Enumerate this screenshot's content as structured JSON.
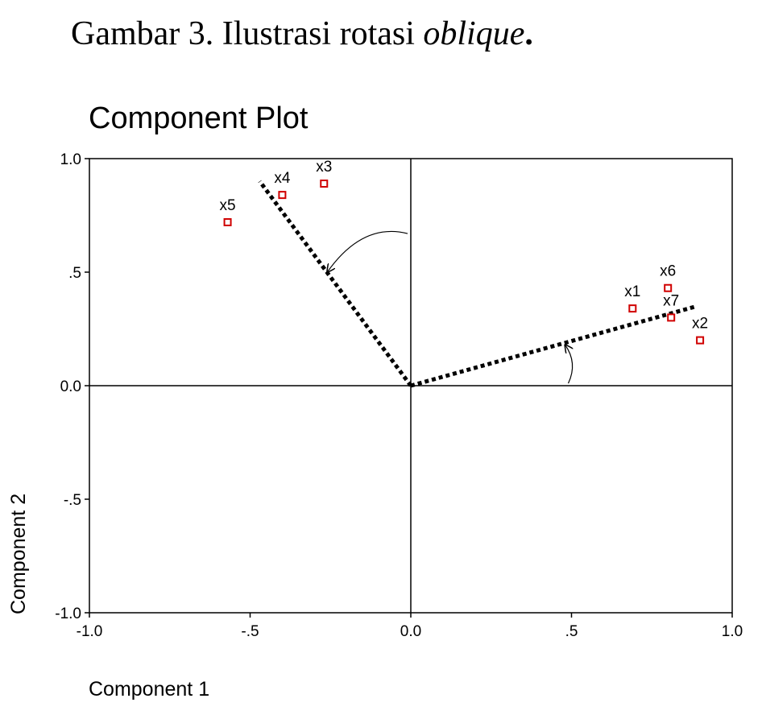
{
  "caption": {
    "prefix": "Gambar 3.  Ilustrasi rotasi ",
    "italic": "oblique",
    "suffix": "."
  },
  "chart_data": {
    "type": "scatter",
    "title": "Component Plot",
    "xlabel": "Component 1",
    "ylabel": "Component 2",
    "xlim": [
      -1.0,
      1.0
    ],
    "ylim": [
      -1.0,
      1.0
    ],
    "x_ticks": [
      {
        "value": -1.0,
        "label": "-1.0"
      },
      {
        "value": -0.5,
        "label": "-.5"
      },
      {
        "value": 0.0,
        "label": "0.0"
      },
      {
        "value": 0.5,
        "label": ".5"
      },
      {
        "value": 1.0,
        "label": "1.0"
      }
    ],
    "y_ticks": [
      {
        "value": 1.0,
        "label": "1.0"
      },
      {
        "value": 0.5,
        "label": ".5"
      },
      {
        "value": 0.0,
        "label": "0.0"
      },
      {
        "value": -0.5,
        "label": "-.5"
      },
      {
        "value": -1.0,
        "label": "-1.0"
      }
    ],
    "points": [
      {
        "label": "x1",
        "x": 0.69,
        "y": 0.34
      },
      {
        "label": "x2",
        "x": 0.9,
        "y": 0.2
      },
      {
        "label": "x3",
        "x": -0.27,
        "y": 0.89
      },
      {
        "label": "x4",
        "x": -0.4,
        "y": 0.84
      },
      {
        "label": "x5",
        "x": -0.57,
        "y": 0.72
      },
      {
        "label": "x6",
        "x": 0.8,
        "y": 0.43
      },
      {
        "label": "x7",
        "x": 0.81,
        "y": 0.3
      }
    ],
    "rotated_axes": [
      {
        "x1": 0.0,
        "y1": 0.0,
        "x2": -0.47,
        "y2": 0.9
      },
      {
        "x1": 0.0,
        "y1": 0.0,
        "x2": 0.89,
        "y2": 0.35
      }
    ],
    "rotation_arrows": [
      {
        "from": [
          -0.01,
          0.67
        ],
        "control": [
          -0.15,
          0.72
        ],
        "to": [
          -0.26,
          0.5
        ]
      },
      {
        "from": [
          0.49,
          0.01
        ],
        "control": [
          0.52,
          0.1
        ],
        "to": [
          0.48,
          0.18
        ]
      }
    ],
    "grid": false,
    "legend": "none",
    "marker_color": "#d00000"
  }
}
